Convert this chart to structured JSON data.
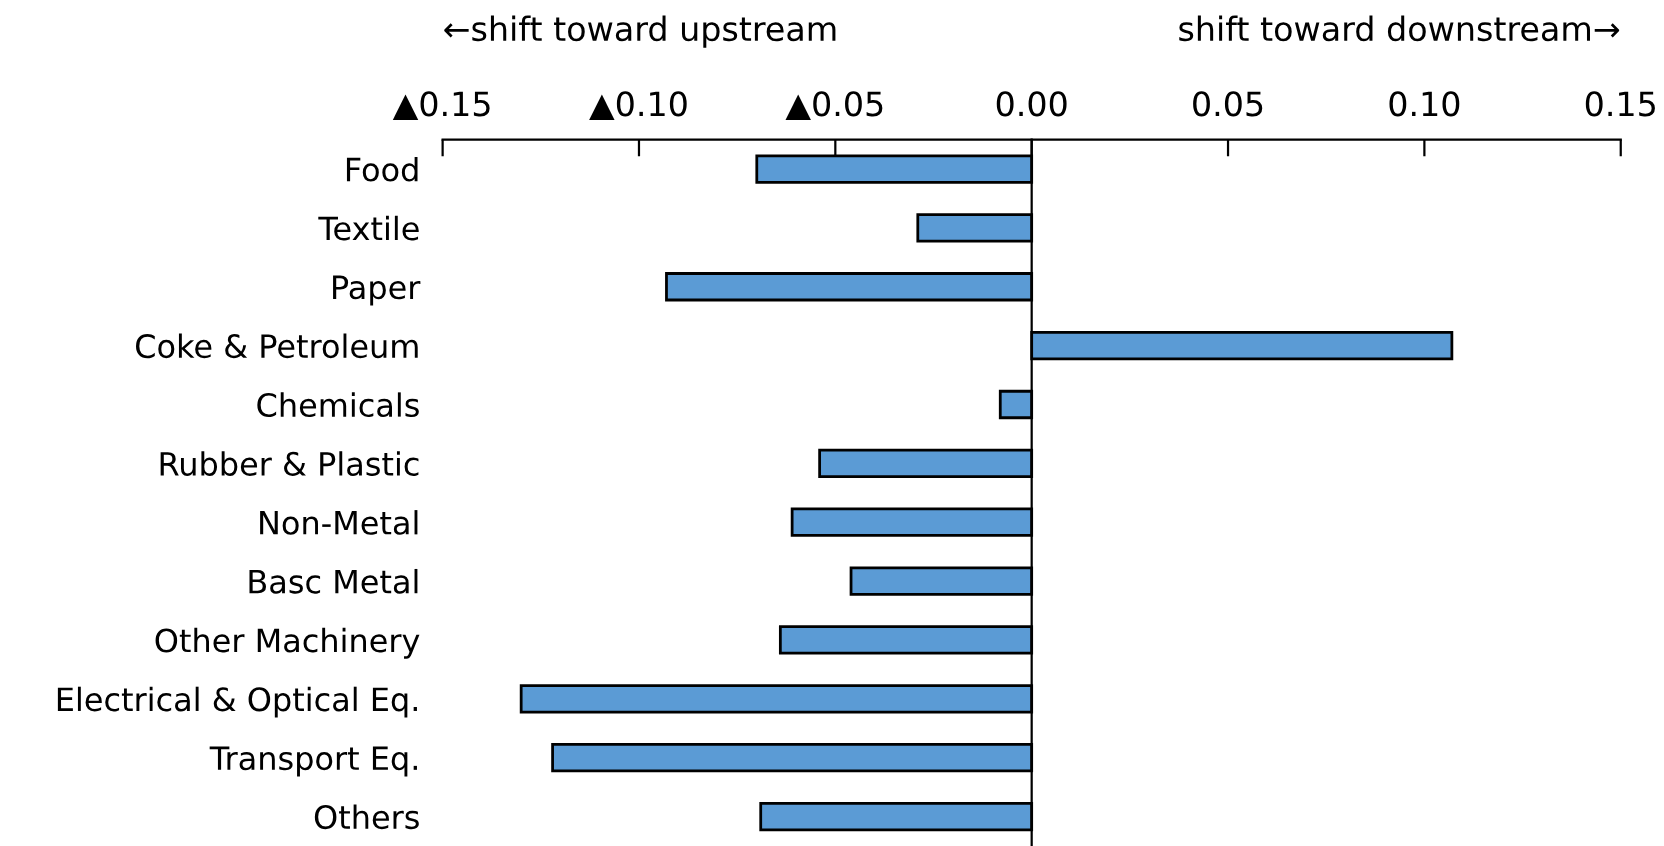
{
  "chart_data": {
    "type": "bar",
    "orientation": "horizontal",
    "categories": [
      "Food",
      "Textile",
      "Paper",
      "Coke & Petroleum",
      "Chemicals",
      "Rubber & Plastic",
      "Non-Metal",
      "Basc Metal",
      "Other Machinery",
      "Electrical & Optical Eq.",
      "Transport Eq.",
      "Others"
    ],
    "values": [
      -0.07,
      -0.029,
      -0.093,
      0.107,
      -0.008,
      -0.054,
      -0.061,
      -0.046,
      -0.064,
      -0.13,
      -0.122,
      -0.069
    ],
    "color": "#5b9bd5",
    "xlim": [
      -0.15,
      0.15
    ],
    "xticks": [
      {
        "value": -0.15,
        "label": "▲0.15"
      },
      {
        "value": -0.1,
        "label": "▲0.10"
      },
      {
        "value": -0.05,
        "label": "▲0.05"
      },
      {
        "value": 0,
        "label": "0.00"
      },
      {
        "value": 0.05,
        "label": "0.05"
      },
      {
        "value": 0.1,
        "label": "0.10"
      },
      {
        "value": 0.15,
        "label": "0.15"
      }
    ],
    "annotations": [
      "←shift toward upstream",
      "shift toward downstream→"
    ],
    "legend": false
  }
}
